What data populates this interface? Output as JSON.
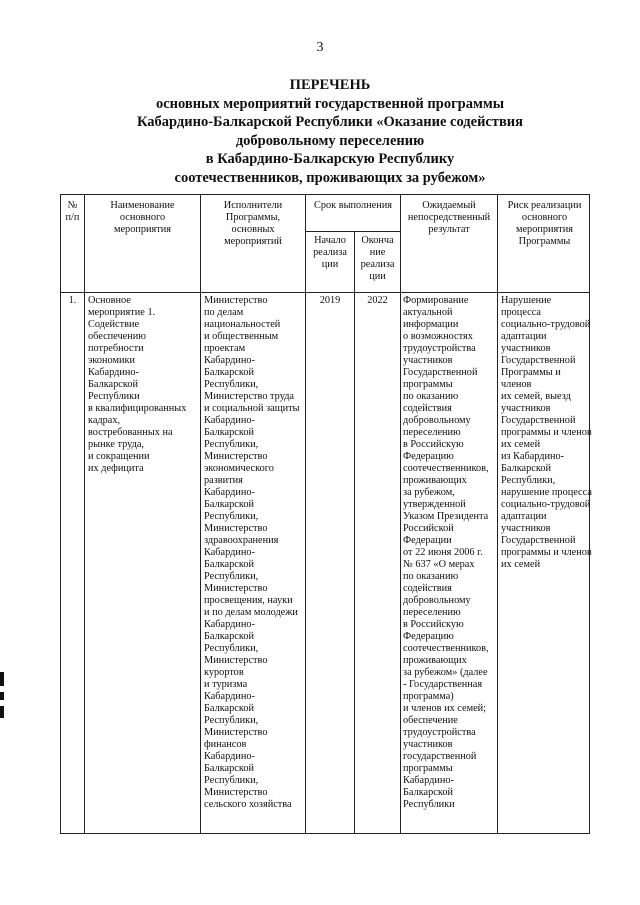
{
  "page_number": "3",
  "title": {
    "line1": "ПЕРЕЧЕНЬ",
    "rest": "основных мероприятий государственной программы\nКабардино-Балкарской Республики «Оказание содействия\nдобровольному переселению\nв Кабардино-Балкарскую Республику\nсоотечественников, проживающих за рубежом»"
  },
  "table": {
    "headers": {
      "num": "№\nп/п",
      "name": "Наименование\nосновного\nмероприятия",
      "executors": "Исполнители\nПрограммы,\nосновных\nмероприятий",
      "term": "Срок выполнения",
      "start": "Начало\nреализа\nции",
      "end": "Оконча\nние\nреализа\nции",
      "result": "Ожидаемый\nнепосредственный\nрезультат",
      "risk": "Риск реализации\nосновного\nмероприятия\nПрограммы"
    },
    "rows": [
      {
        "num": "1.",
        "name": "Основное\nмероприятие 1.\nСодействие\nобеспечению\nпотребности\nэкономики\nКабардино-\nБалкарской\nРеспублики\nв квалифицированных\nкадрах,\nвостребованных на\nрынке труда,\nи сокращении\nих дефицита",
        "executors": "Министерство\nпо делам\nнациональностей\nи общественным\nпроектам\nКабардино-\nБалкарской\nРеспублики,\nМинистерство труда\nи социальной защиты\nКабардино-\nБалкарской\nРеспублики,\nМинистерство\nэкономического\nразвития\nКабардино-\nБалкарской\nРеспублики,\nМинистерство\nздравоохранения\nКабардино-\nБалкарской\nРеспублики,\nМинистерство\nпросвещения, науки\nи по делам молодежи\nКабардино-\nБалкарской\nРеспублики,\nМинистерство\nкурортов\nи туризма\nКабардино-\nБалкарской\nРеспублики,\nМинистерство\nфинансов\nКабардино-\nБалкарской\nРеспублики,\nМинистерство\nсельского хозяйства",
        "start": "2019",
        "end": "2022",
        "result": "Формирование\nактуальной\nинформации\nо возможностях\nтрудоустройства\nучастников\nГосударственной\nпрограммы\nпо оказанию\nсодействия\nдобровольному\nпереселению\nв Российскую\nФедерацию\nсоотечественников,\nпроживающих\nза рубежом,\nутвержденной\nУказом Президента\nРоссийской\nФедерации\nот 22 июня 2006 г.\n№ 637 «О мерах\nпо оказанию\nсодействия\nдобровольному\nпереселению\nв Российскую\nФедерацию\nсоотечественников,\nпроживающих\nза рубежом» (далее\n- Государственная\nпрограмма)\nи членов их семей;\nобеспечение\nтрудоустройства\nучастников\nгосударственной\nпрограммы\nКабардино-\nБалкарской\nРеспублики",
        "risk": "Нарушение процесса\nсоциально-трудовой\nадаптации\nучастников\nГосударственной\nПрограммы и членов\nих семей, выезд\nучастников\nГосударственной\nпрограммы и членов\nих семей\nиз Кабардино-\nБалкарской\nРеспублики,\nнарушение процесса\nсоциально-трудовой\nадаптации\nучастников\nГосударственной\nпрограммы и членов\nих семей"
      }
    ]
  }
}
